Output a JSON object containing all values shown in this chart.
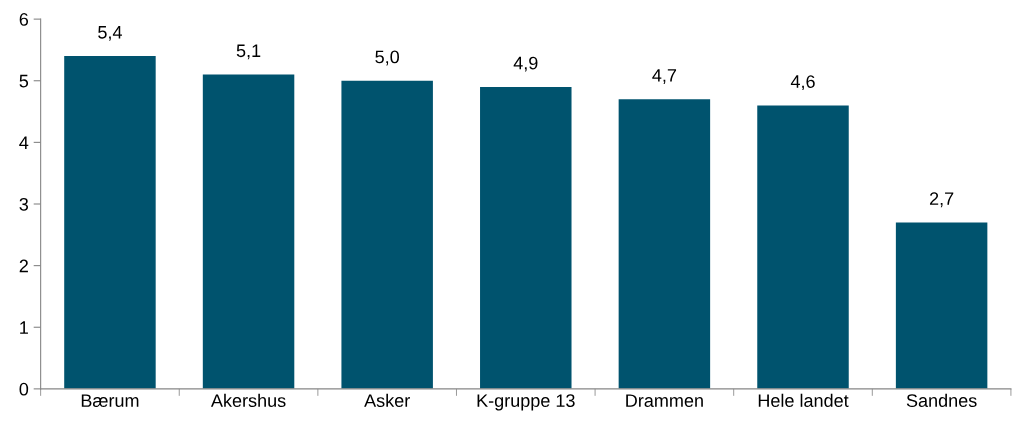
{
  "chart_data": {
    "type": "bar",
    "categories": [
      "Bærum",
      "Akershus",
      "Asker",
      "K-gruppe 13",
      "Drammen",
      "Hele landet",
      "Sandnes"
    ],
    "values": [
      5.4,
      5.1,
      5.0,
      4.9,
      4.7,
      4.6,
      2.7
    ],
    "value_labels": [
      "5,4",
      "5,1",
      "5,0",
      "4,9",
      "4,7",
      "4,6",
      "2,7"
    ],
    "color": "#00536e",
    "ylim": [
      0,
      6
    ],
    "yticks": [
      0,
      1,
      2,
      3,
      4,
      5,
      6
    ],
    "grid": false,
    "legend": false
  }
}
